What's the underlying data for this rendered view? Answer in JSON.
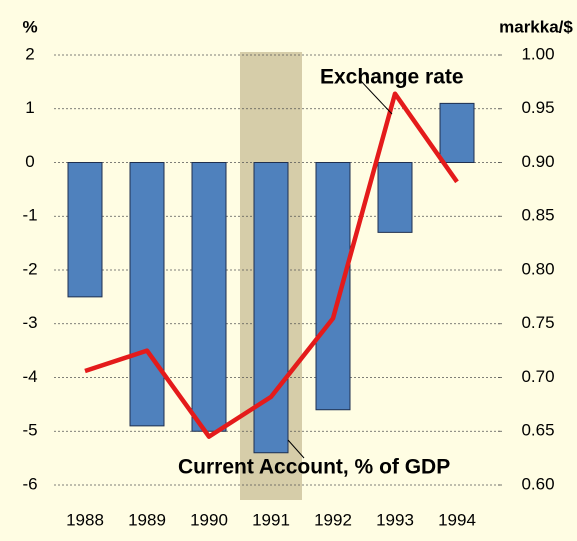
{
  "chart_data": {
    "type": "bar",
    "ylabel": "%",
    "y2label": "markka/$",
    "categories": [
      "1988",
      "1989",
      "1990",
      "1991",
      "1992",
      "1993",
      "1994"
    ],
    "series": [
      {
        "name": "Current Account, % of GDP",
        "type": "bar",
        "color": "#4f81bd",
        "values": [
          -2.5,
          -4.9,
          -5.0,
          -5.4,
          -4.6,
          -1.3,
          1.1
        ]
      },
      {
        "name": "Exchange rate",
        "type": "line",
        "axis": "y2",
        "color": "#e41b1b",
        "values": [
          0.706,
          0.725,
          0.645,
          0.682,
          0.755,
          0.964,
          0.882
        ]
      }
    ],
    "ylim": [
      -6,
      2
    ],
    "yticks": [
      -6,
      -5,
      -4,
      -3,
      -2,
      -1,
      0,
      1,
      2
    ],
    "y2lim": [
      0.6,
      1.0
    ],
    "y2ticks": [
      {
        "value": 0.6,
        "label": "0.60"
      },
      {
        "value": 0.65,
        "label": "0.65"
      },
      {
        "value": 0.7,
        "label": "0.70"
      },
      {
        "value": 0.75,
        "label": "0.75"
      },
      {
        "value": 0.8,
        "label": "0.80"
      },
      {
        "value": 0.85,
        "label": "0.85"
      },
      {
        "value": 0.9,
        "label": "0.90"
      },
      {
        "value": 0.95,
        "label": "0.95"
      },
      {
        "value": 1.0,
        "label": "1.00"
      }
    ],
    "grid": true
  }
}
